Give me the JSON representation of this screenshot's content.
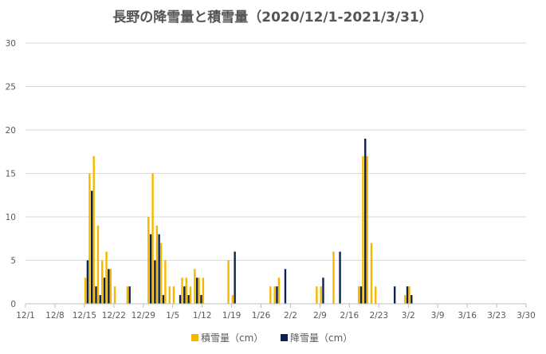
{
  "chart_data": {
    "type": "bar",
    "title": "長野の降雪量と積雪量（2020/12/1-2021/3/31）",
    "x_start": "2020/12/1",
    "x_end": "2021/3/31",
    "x_ticks": [
      "12/1",
      "12/8",
      "12/15",
      "12/22",
      "12/29",
      "1/5",
      "1/12",
      "1/19",
      "1/26",
      "2/2",
      "2/9",
      "2/16",
      "2/23",
      "3/2",
      "3/9",
      "3/16",
      "3/23",
      "3/30"
    ],
    "ylim": [
      0,
      30
    ],
    "y_ticks": [
      "0",
      "5",
      "10",
      "15",
      "20",
      "25",
      "30"
    ],
    "grid": true,
    "legend_position": "bottom",
    "colors": {
      "snow_depth": "#F5B800",
      "snowfall": "#0D2350",
      "grid": "#D9D9D9",
      "axis": "#BFBFBF"
    },
    "series": [
      {
        "name": "積雪量（cm）",
        "key": "snow_depth",
        "points": [
          [
            "12/15",
            3
          ],
          [
            "12/16",
            15
          ],
          [
            "12/17",
            17
          ],
          [
            "12/18",
            9
          ],
          [
            "12/19",
            5
          ],
          [
            "12/20",
            6
          ],
          [
            "12/21",
            4
          ],
          [
            "12/22",
            2
          ],
          [
            "12/25",
            2
          ],
          [
            "12/30",
            10
          ],
          [
            "12/31",
            15
          ],
          [
            "1/1",
            9
          ],
          [
            "1/2",
            7
          ],
          [
            "1/3",
            5
          ],
          [
            "1/4",
            2
          ],
          [
            "1/5",
            2
          ],
          [
            "1/7",
            3
          ],
          [
            "1/8",
            3
          ],
          [
            "1/9",
            2
          ],
          [
            "1/10",
            4
          ],
          [
            "1/11",
            3
          ],
          [
            "1/12",
            3
          ],
          [
            "1/18",
            5
          ],
          [
            "1/19",
            1
          ],
          [
            "1/28",
            2
          ],
          [
            "1/29",
            2
          ],
          [
            "1/30",
            3
          ],
          [
            "2/8",
            2
          ],
          [
            "2/9",
            2
          ],
          [
            "2/12",
            6
          ],
          [
            "2/18",
            2
          ],
          [
            "2/19",
            17
          ],
          [
            "2/20",
            17
          ],
          [
            "2/21",
            7
          ],
          [
            "2/22",
            2
          ],
          [
            "3/1",
            1
          ],
          [
            "3/2",
            2
          ]
        ]
      },
      {
        "name": "降雪量（cm）",
        "key": "snowfall",
        "points": [
          [
            "12/15",
            5
          ],
          [
            "12/16",
            13
          ],
          [
            "12/17",
            2
          ],
          [
            "12/18",
            1
          ],
          [
            "12/19",
            3
          ],
          [
            "12/20",
            4
          ],
          [
            "12/25",
            2
          ],
          [
            "12/30",
            8
          ],
          [
            "12/31",
            5
          ],
          [
            "1/1",
            8
          ],
          [
            "1/2",
            1
          ],
          [
            "1/6",
            1
          ],
          [
            "1/7",
            2
          ],
          [
            "1/8",
            1
          ],
          [
            "1/10",
            3
          ],
          [
            "1/11",
            1
          ],
          [
            "1/19",
            6
          ],
          [
            "1/29",
            2
          ],
          [
            "1/31",
            4
          ],
          [
            "2/9",
            3
          ],
          [
            "2/13",
            6
          ],
          [
            "2/18",
            2
          ],
          [
            "2/19",
            19
          ],
          [
            "2/26",
            2
          ],
          [
            "3/1",
            2
          ],
          [
            "3/2",
            1
          ]
        ]
      }
    ]
  }
}
